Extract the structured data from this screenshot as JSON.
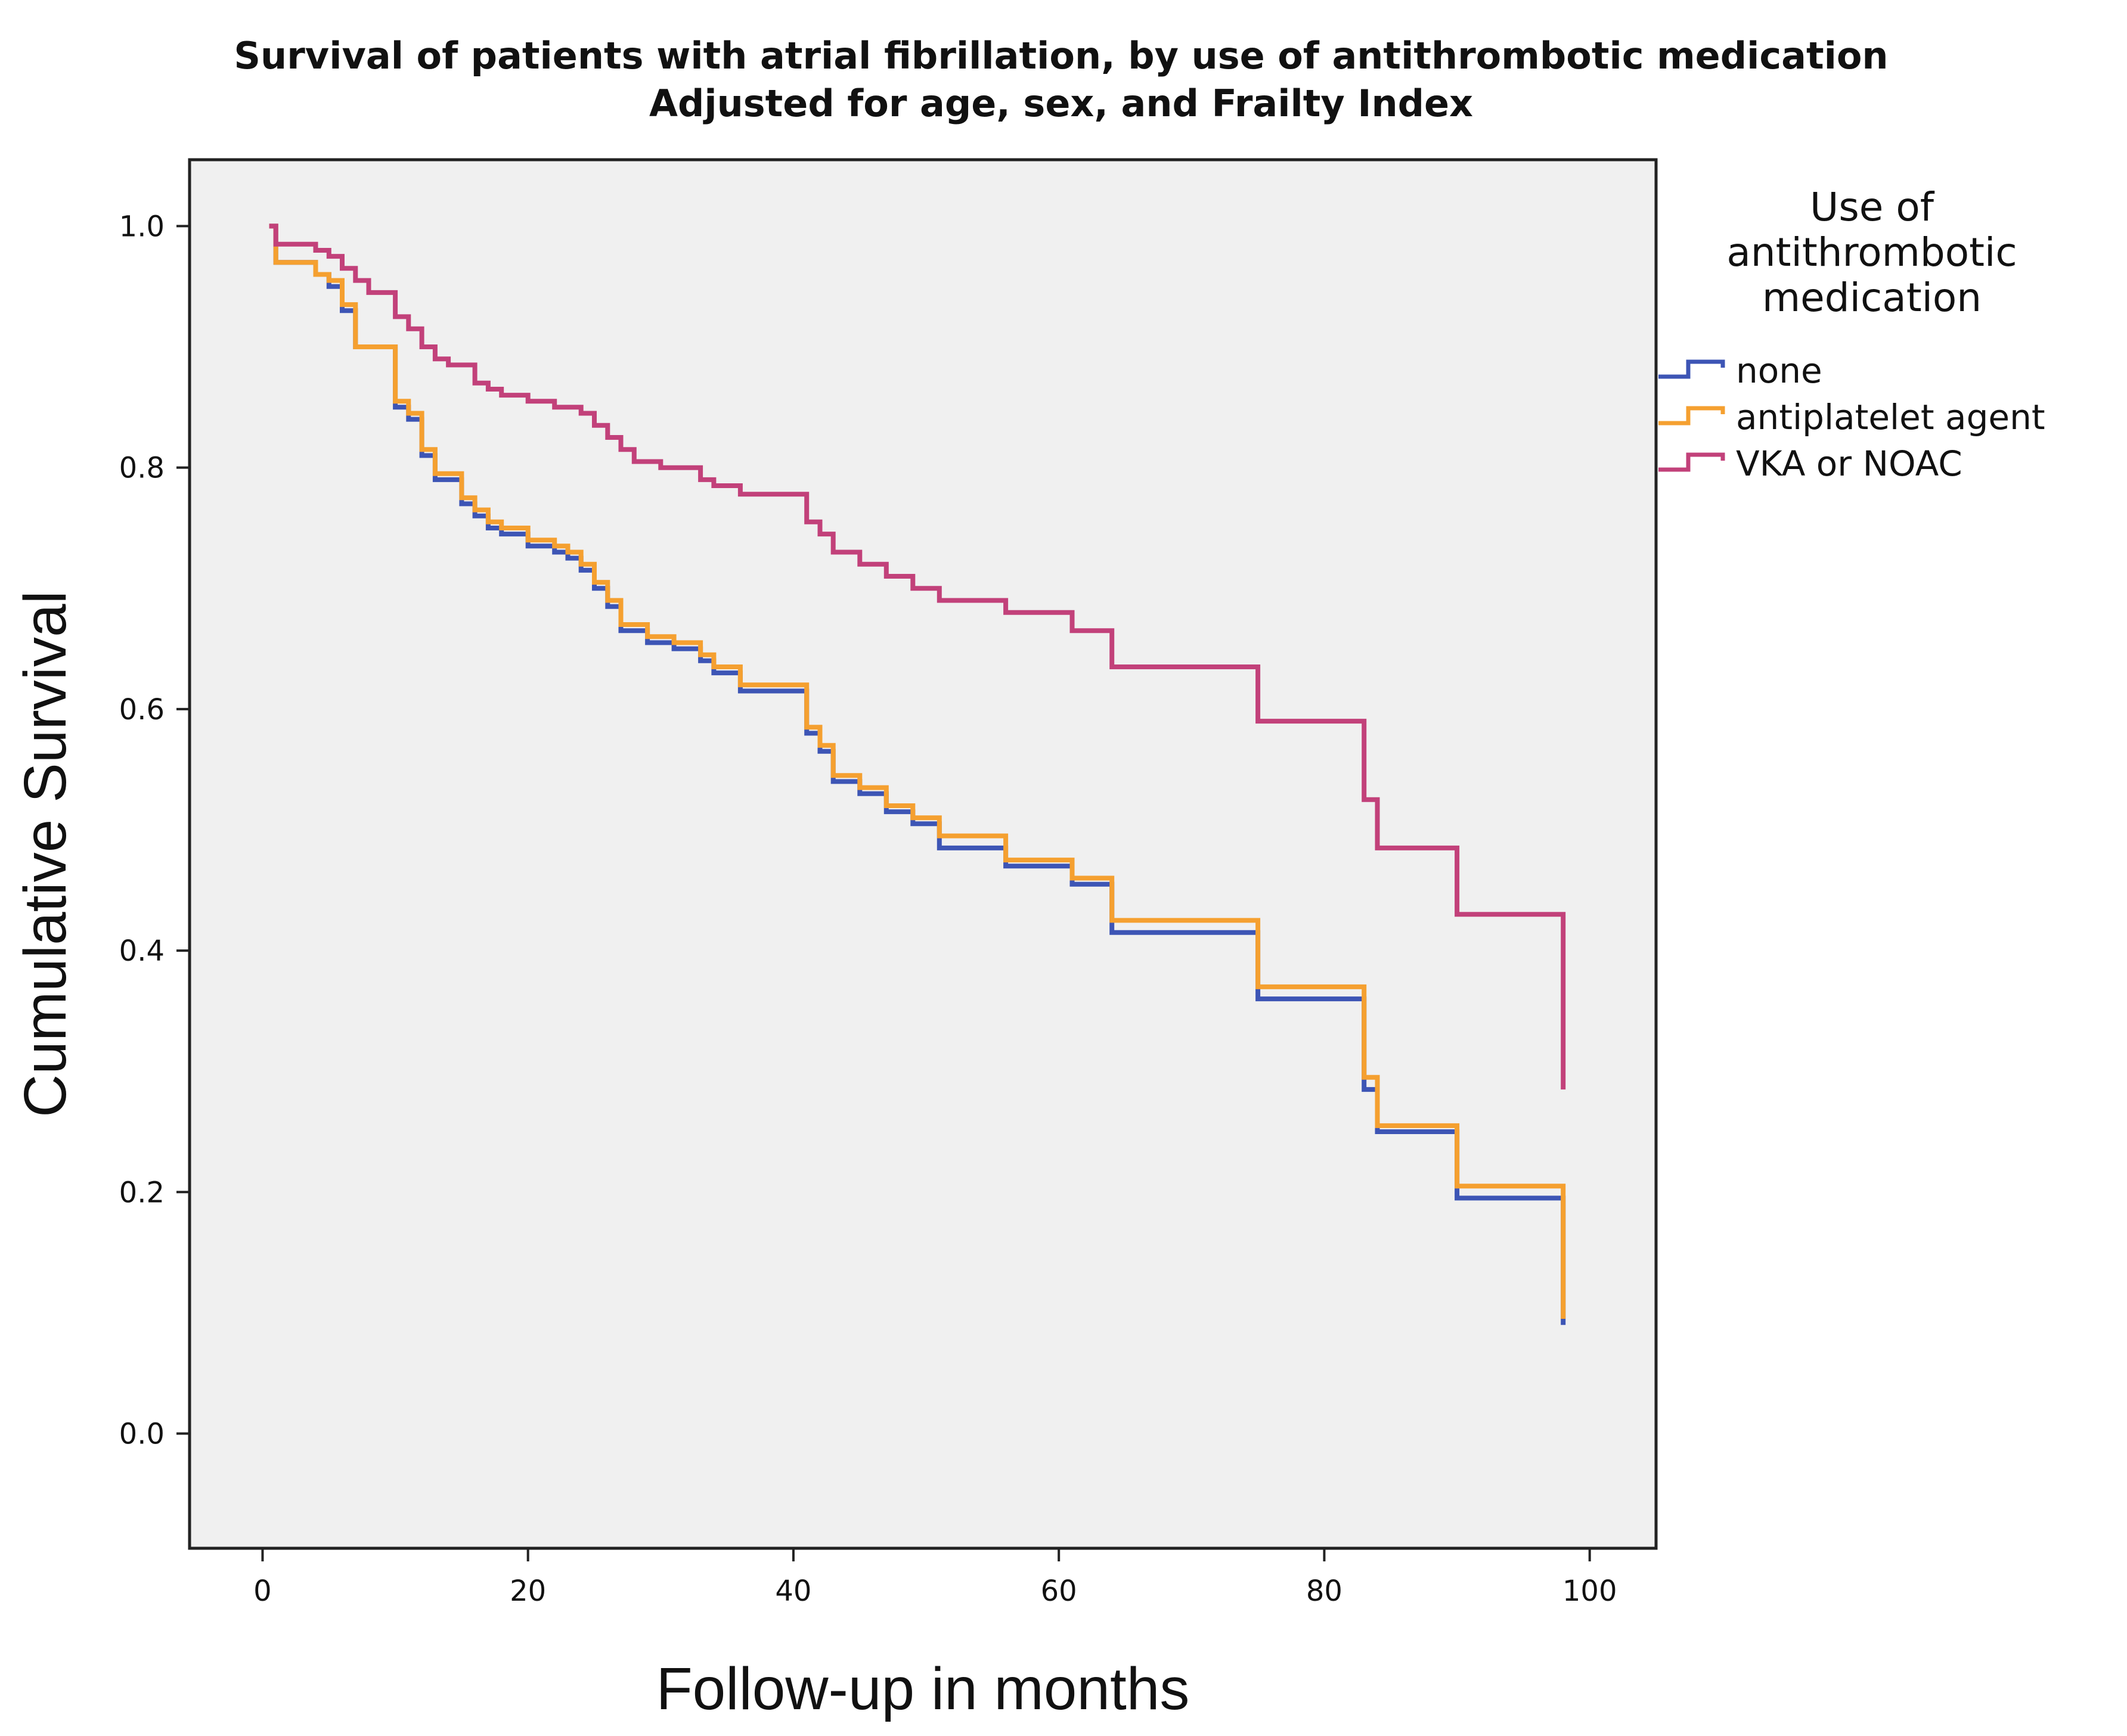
{
  "chart_data": {
    "type": "line",
    "step": true,
    "title": "Survival of patients with atrial fibrillation, by use of antithrombotic medication",
    "subtitle": "Adjusted for age, sex, and Frailty Index",
    "xlabel": "Follow-up in months",
    "ylabel": "Cumulative Survival",
    "xlim": [
      -5.5,
      105
    ],
    "ylim": [
      -0.095,
      1.055
    ],
    "x_ticks": [
      0,
      20,
      40,
      60,
      80,
      100
    ],
    "x_tick_labels": [
      "0",
      "20",
      "40",
      "60",
      "80",
      "100"
    ],
    "y_ticks": [
      0.0,
      0.2,
      0.4,
      0.6,
      0.8,
      1.0
    ],
    "y_tick_labels": [
      "0.0",
      "0.2",
      "0.4",
      "0.6",
      "0.8",
      "1.0"
    ],
    "grid": false,
    "legend": {
      "title": "Use of antithrombotic medication",
      "title_lines": [
        "Use of",
        "antithrombotic",
        "medication"
      ],
      "position": "right"
    },
    "series": [
      {
        "name": "none",
        "color": "#3d55b5",
        "points": [
          [
            0.5,
            1.0
          ],
          [
            1,
            0.97
          ],
          [
            4,
            0.96
          ],
          [
            5,
            0.95
          ],
          [
            6,
            0.93
          ],
          [
            7,
            0.9
          ],
          [
            10,
            0.85
          ],
          [
            11,
            0.84
          ],
          [
            12,
            0.81
          ],
          [
            13,
            0.79
          ],
          [
            15,
            0.77
          ],
          [
            16,
            0.76
          ],
          [
            17,
            0.75
          ],
          [
            18,
            0.745
          ],
          [
            20,
            0.735
          ],
          [
            22,
            0.73
          ],
          [
            23,
            0.725
          ],
          [
            24,
            0.715
          ],
          [
            25,
            0.7
          ],
          [
            26,
            0.685
          ],
          [
            27,
            0.665
          ],
          [
            29,
            0.655
          ],
          [
            31,
            0.65
          ],
          [
            33,
            0.64
          ],
          [
            34,
            0.63
          ],
          [
            36,
            0.615
          ],
          [
            38,
            0.615
          ],
          [
            41,
            0.58
          ],
          [
            42,
            0.565
          ],
          [
            43,
            0.54
          ],
          [
            45,
            0.53
          ],
          [
            47,
            0.515
          ],
          [
            49,
            0.505
          ],
          [
            51,
            0.485
          ],
          [
            56,
            0.47
          ],
          [
            61,
            0.455
          ],
          [
            64,
            0.415
          ],
          [
            75,
            0.36
          ],
          [
            83,
            0.285
          ],
          [
            84,
            0.25
          ],
          [
            90,
            0.195
          ],
          [
            98,
            0.09
          ]
        ]
      },
      {
        "name": "antiplatelet agent",
        "color": "#f5a030",
        "points": [
          [
            0.5,
            1.0
          ],
          [
            1,
            0.97
          ],
          [
            4,
            0.96
          ],
          [
            5,
            0.955
          ],
          [
            6,
            0.935
          ],
          [
            7,
            0.9
          ],
          [
            10,
            0.855
          ],
          [
            11,
            0.845
          ],
          [
            12,
            0.815
          ],
          [
            13,
            0.795
          ],
          [
            15,
            0.775
          ],
          [
            16,
            0.765
          ],
          [
            17,
            0.755
          ],
          [
            18,
            0.75
          ],
          [
            20,
            0.74
          ],
          [
            22,
            0.735
          ],
          [
            23,
            0.73
          ],
          [
            24,
            0.72
          ],
          [
            25,
            0.705
          ],
          [
            26,
            0.69
          ],
          [
            27,
            0.67
          ],
          [
            29,
            0.66
          ],
          [
            31,
            0.655
          ],
          [
            33,
            0.645
          ],
          [
            34,
            0.635
          ],
          [
            36,
            0.62
          ],
          [
            38,
            0.62
          ],
          [
            41,
            0.585
          ],
          [
            42,
            0.57
          ],
          [
            43,
            0.545
          ],
          [
            45,
            0.535
          ],
          [
            47,
            0.52
          ],
          [
            49,
            0.51
          ],
          [
            51,
            0.495
          ],
          [
            56,
            0.475
          ],
          [
            61,
            0.46
          ],
          [
            64,
            0.425
          ],
          [
            75,
            0.37
          ],
          [
            83,
            0.295
          ],
          [
            84,
            0.255
          ],
          [
            90,
            0.205
          ],
          [
            98,
            0.095
          ]
        ]
      },
      {
        "name": "VKA or NOAC",
        "color": "#c2417a",
        "points": [
          [
            0.5,
            1.0
          ],
          [
            1,
            0.985
          ],
          [
            4,
            0.98
          ],
          [
            5,
            0.975
          ],
          [
            6,
            0.965
          ],
          [
            7,
            0.955
          ],
          [
            8,
            0.945
          ],
          [
            10,
            0.925
          ],
          [
            11,
            0.915
          ],
          [
            12,
            0.9
          ],
          [
            13,
            0.89
          ],
          [
            14,
            0.885
          ],
          [
            16,
            0.87
          ],
          [
            17,
            0.865
          ],
          [
            18,
            0.86
          ],
          [
            20,
            0.855
          ],
          [
            22,
            0.85
          ],
          [
            24,
            0.845
          ],
          [
            25,
            0.835
          ],
          [
            26,
            0.825
          ],
          [
            27,
            0.815
          ],
          [
            28,
            0.805
          ],
          [
            30,
            0.8
          ],
          [
            33,
            0.79
          ],
          [
            34,
            0.785
          ],
          [
            36,
            0.778
          ],
          [
            41,
            0.755
          ],
          [
            42,
            0.745
          ],
          [
            43,
            0.73
          ],
          [
            45,
            0.72
          ],
          [
            47,
            0.71
          ],
          [
            49,
            0.7
          ],
          [
            51,
            0.69
          ],
          [
            56,
            0.68
          ],
          [
            61,
            0.665
          ],
          [
            64,
            0.635
          ],
          [
            75,
            0.59
          ],
          [
            83,
            0.525
          ],
          [
            84,
            0.485
          ],
          [
            90,
            0.43
          ],
          [
            98,
            0.285
          ]
        ]
      }
    ]
  }
}
